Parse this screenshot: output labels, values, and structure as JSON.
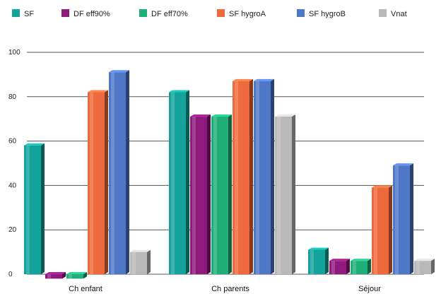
{
  "chart_data": {
    "type": "bar",
    "categories": [
      "Ch enfant",
      "Ch parents",
      "Séjour"
    ],
    "series": [
      {
        "name": "SF",
        "color": "#14a39b",
        "values": [
          58,
          82,
          11
        ]
      },
      {
        "name": "DF eff90%",
        "color": "#8e1a7e",
        "values": [
          -2,
          71,
          6
        ]
      },
      {
        "name": "DF eff70%",
        "color": "#1fae78",
        "values": [
          -2,
          71,
          6
        ]
      },
      {
        "name": "SF hygroA",
        "color": "#ee6a3c",
        "values": [
          82,
          87,
          39
        ]
      },
      {
        "name": "SF hygroB",
        "color": "#4f77c8",
        "values": [
          91,
          87,
          49
        ]
      },
      {
        "name": "Vnat",
        "color": "#b9b9b9",
        "values": [
          10,
          71,
          6
        ]
      }
    ],
    "yticks": [
      0,
      20,
      40,
      60,
      80,
      100
    ],
    "ylim": [
      -5,
      102
    ],
    "grid": true,
    "legend": "top",
    "title": "",
    "xlabel": "",
    "ylabel": ""
  }
}
